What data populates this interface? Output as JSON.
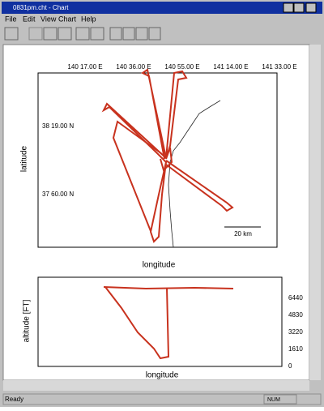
{
  "window": {
    "title": "0831pm.cht - Chart"
  },
  "menu": [
    "File",
    "Edit",
    "View",
    "Chart",
    "Help"
  ],
  "map_chart": {
    "x_ticks": [
      "140 17.00 E",
      "140 36.00 E",
      "140 55.00 E",
      "141 14.00 E",
      "141 33.00 E"
    ],
    "y_ticks": [
      "38 19.00 N",
      "37 60.00 N"
    ],
    "x_label": "longitude",
    "y_label": "latitude",
    "scale_label": "20 km"
  },
  "altitude_chart": {
    "y_ticks": [
      "6440",
      "4830",
      "3220",
      "1610",
      "0"
    ],
    "x_label": "longitude",
    "y_label": "altitude [FT]"
  },
  "status": {
    "left": "Ready",
    "right": "NUM"
  }
}
